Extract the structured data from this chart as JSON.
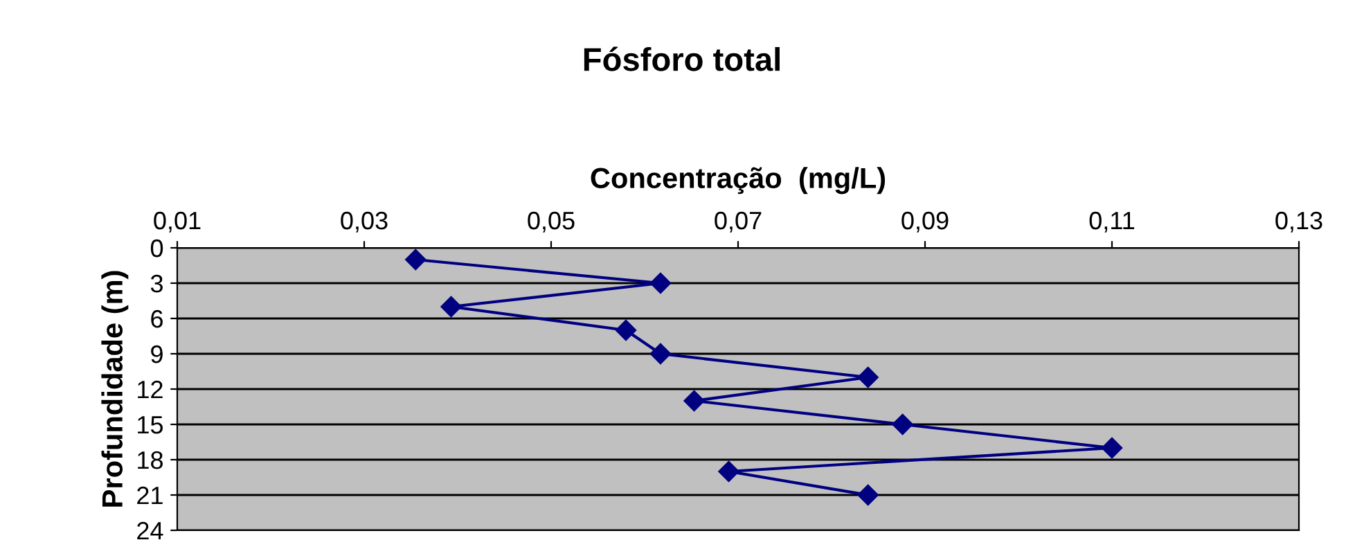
{
  "chart_data": {
    "type": "line",
    "title": "Fósforo total",
    "xlabel": "Concentração  (mg/L)",
    "ylabel": "Profundidade (m)",
    "series": [
      {
        "color": "#000080",
        "x": [
          0.0355,
          0.0617,
          0.0393,
          0.058,
          0.0617,
          0.0839,
          0.0653,
          0.0876,
          0.11,
          0.069,
          0.0839
        ],
        "values": [
          1,
          3,
          5,
          7,
          9,
          11,
          13,
          15,
          17,
          19,
          21
        ]
      }
    ],
    "xlim": [
      0.01,
      0.13
    ],
    "xticks": [
      {
        "value": 0.01,
        "label": "0,01"
      },
      {
        "value": 0.03,
        "label": "0,03"
      },
      {
        "value": 0.05,
        "label": "0,05"
      },
      {
        "value": 0.07,
        "label": "0,07"
      },
      {
        "value": 0.09,
        "label": "0,09"
      },
      {
        "value": 0.11,
        "label": "0,11"
      },
      {
        "value": 0.13,
        "label": "0,13"
      }
    ],
    "ylim": [
      24,
      0
    ],
    "yticks": [
      0,
      3,
      6,
      9,
      12,
      15,
      18,
      21,
      24
    ],
    "grid": "y",
    "marker": "diamond",
    "line_style": "solid",
    "legend": false
  }
}
